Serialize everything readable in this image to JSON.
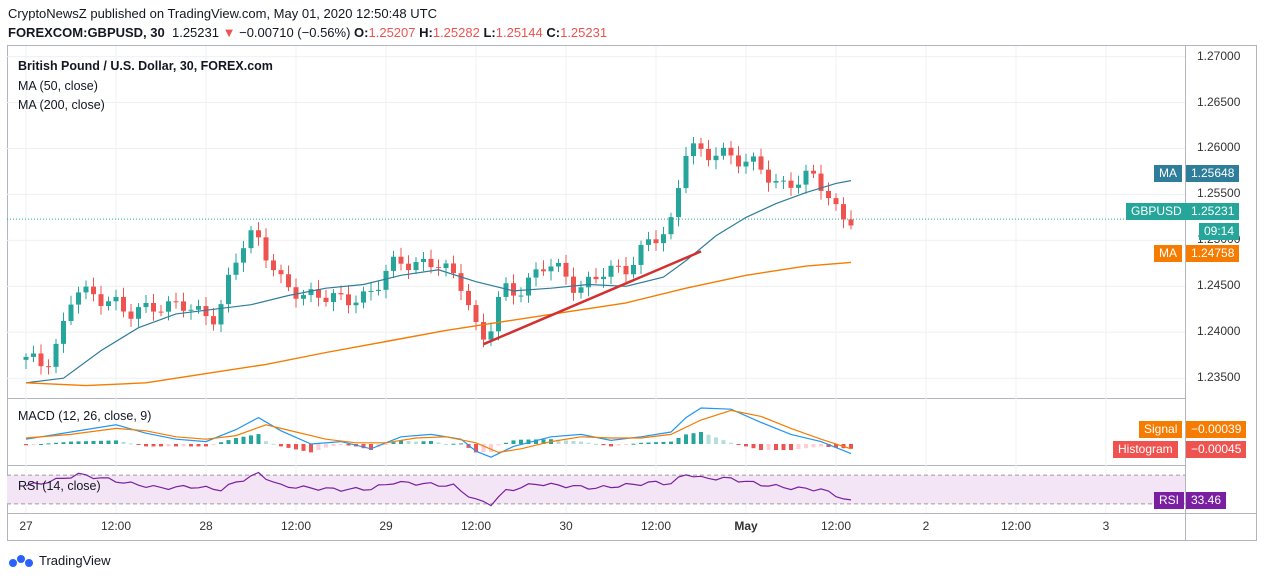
{
  "header": {
    "publisher_line": "CryptoNewsZ published on TradingView.com, May 01, 2020 12:50:48 UTC",
    "symbol": "FOREXCOM:GBPUSD, 30",
    "last": "1.25231",
    "change": "−0.00710 (−0.56%)",
    "o_label": "O:",
    "o": "1.25207",
    "h_label": "H:",
    "h": "1.25282",
    "l_label": "L:",
    "l": "1.25144",
    "c_label": "C:",
    "c": "1.25231"
  },
  "legend": {
    "title": "British Pound / U.S. Dollar, 30, FOREX.com",
    "ma50": "MA (50, close)",
    "ma200": "MA (200, close)",
    "macd": "MACD (12, 26, close, 9)",
    "rsi": "RSI (14, close)"
  },
  "price_tags": {
    "ma50_label": "MA",
    "ma50_value": "1.25648",
    "gbpusd_label": "GBPUSD",
    "gbpusd_value": "1.25231",
    "countdown": "09:14",
    "ma200_label": "MA",
    "ma200_value": "1.24758",
    "signal_label": "Signal",
    "signal_value": "−0.00039",
    "hist_label": "Histogram",
    "hist_value": "−0.00045",
    "rsi_label": "RSI",
    "rsi_value": "33.46"
  },
  "colors": {
    "up": "#26a69a",
    "down": "#ef5350",
    "ma50": "#2e7d9a",
    "ma200": "#f57c00",
    "trendline": "#d32f2f",
    "rsi": "#7b1fa2",
    "rsi_band": "#f3e5f5"
  },
  "footer": {
    "brand": "TradingView",
    "logo_icon": "tradingview-logo-icon"
  },
  "chart_data": {
    "type": "line",
    "title": "British Pound / U.S. Dollar, 30, FOREX.com",
    "xlabel": "",
    "ylabel": "",
    "ylim": [
      1.2335,
      1.2705
    ],
    "y_ticks": [
      "1.27000",
      "1.26500",
      "1.26000",
      "1.25500",
      "1.25000",
      "1.24500",
      "1.24000",
      "1.23500"
    ],
    "x_ticks": [
      "27",
      "12:00",
      "28",
      "12:00",
      "29",
      "12:00",
      "30",
      "12:00",
      "May",
      "12:00",
      "2",
      "12:00",
      "3"
    ],
    "x_tick_pos": [
      0,
      12,
      24,
      36,
      48,
      60,
      72,
      84,
      96,
      108,
      120,
      132,
      144
    ],
    "last_index": 110,
    "price": [
      [
        0,
        1.237
      ],
      [
        3,
        1.2365
      ],
      [
        5,
        1.2395
      ],
      [
        7,
        1.2445
      ],
      [
        9,
        1.244
      ],
      [
        12,
        1.2438
      ],
      [
        14,
        1.2415
      ],
      [
        16,
        1.2425
      ],
      [
        18,
        1.2432
      ],
      [
        20,
        1.2428
      ],
      [
        22,
        1.2425
      ],
      [
        24,
        1.2422
      ],
      [
        26,
        1.2418
      ],
      [
        28,
        1.2465
      ],
      [
        30,
        1.2505
      ],
      [
        31,
        1.251
      ],
      [
        33,
        1.248
      ],
      [
        35,
        1.2445
      ],
      [
        37,
        1.244
      ],
      [
        39,
        1.2445
      ],
      [
        41,
        1.2438
      ],
      [
        43,
        1.243
      ],
      [
        45,
        1.244
      ],
      [
        47,
        1.2448
      ],
      [
        49,
        1.247
      ],
      [
        51,
        1.2475
      ],
      [
        53,
        1.2478
      ],
      [
        55,
        1.2475
      ],
      [
        57,
        1.2462
      ],
      [
        59,
        1.245
      ],
      [
        60,
        1.242
      ],
      [
        61,
        1.2395
      ],
      [
        62,
        1.239
      ],
      [
        63,
        1.242
      ],
      [
        64,
        1.2445
      ],
      [
        66,
        1.2445
      ],
      [
        68,
        1.2462
      ],
      [
        70,
        1.2472
      ],
      [
        72,
        1.2465
      ],
      [
        74,
        1.245
      ],
      [
        76,
        1.2455
      ],
      [
        78,
        1.2465
      ],
      [
        80,
        1.247
      ],
      [
        81,
        1.2475
      ],
      [
        82,
        1.2485
      ],
      [
        84,
        1.25
      ],
      [
        85,
        1.25
      ],
      [
        86,
        1.251
      ],
      [
        87,
        1.253
      ],
      [
        88,
        1.2595
      ],
      [
        89,
        1.2608
      ],
      [
        91,
        1.2585
      ],
      [
        93,
        1.2598
      ],
      [
        95,
        1.2592
      ],
      [
        97,
        1.2585
      ],
      [
        99,
        1.257
      ],
      [
        101,
        1.2562
      ],
      [
        103,
        1.2565
      ],
      [
        105,
        1.2568
      ],
      [
        106,
        1.2562
      ],
      [
        107,
        1.2555
      ],
      [
        108,
        1.2545
      ],
      [
        109,
        1.2528
      ],
      [
        110,
        1.2523
      ]
    ],
    "series": [
      {
        "values": [
          [
            0,
            1.2345
          ],
          [
            5,
            1.235
          ],
          [
            10,
            1.238
          ],
          [
            15,
            1.2405
          ],
          [
            20,
            1.242
          ],
          [
            25,
            1.2425
          ],
          [
            30,
            1.243
          ],
          [
            35,
            1.244
          ],
          [
            40,
            1.2448
          ],
          [
            45,
            1.2452
          ],
          [
            50,
            1.2462
          ],
          [
            55,
            1.2468
          ],
          [
            60,
            1.2455
          ],
          [
            65,
            1.2445
          ],
          [
            70,
            1.2448
          ],
          [
            75,
            1.2452
          ],
          [
            80,
            1.245
          ],
          [
            85,
            1.246
          ],
          [
            88,
            1.2478
          ],
          [
            92,
            1.2505
          ],
          [
            96,
            1.2525
          ],
          [
            100,
            1.254
          ],
          [
            104,
            1.2552
          ],
          [
            108,
            1.2562
          ],
          [
            110,
            1.2565
          ]
        ]
      },
      {
        "values": [
          [
            0,
            1.2345
          ],
          [
            8,
            1.2342
          ],
          [
            16,
            1.2345
          ],
          [
            24,
            1.2355
          ],
          [
            32,
            1.2365
          ],
          [
            40,
            1.2378
          ],
          [
            48,
            1.239
          ],
          [
            56,
            1.2402
          ],
          [
            64,
            1.2412
          ],
          [
            72,
            1.2422
          ],
          [
            80,
            1.2432
          ],
          [
            88,
            1.2448
          ],
          [
            96,
            1.2462
          ],
          [
            104,
            1.2472
          ],
          [
            110,
            1.2476
          ]
        ]
      }
    ],
    "trendline": [
      [
        61,
        1.2387
      ],
      [
        90,
        1.2488
      ]
    ],
    "macd": {
      "ylim": [
        -0.0015,
        0.0035
      ],
      "macd_line": [
        [
          0,
          0.0004
        ],
        [
          6,
          0.001
        ],
        [
          12,
          0.0016
        ],
        [
          16,
          0.0009
        ],
        [
          20,
          0.0004
        ],
        [
          24,
          0.0002
        ],
        [
          28,
          0.0012
        ],
        [
          31,
          0.0022
        ],
        [
          34,
          0.0011
        ],
        [
          38,
          0.0
        ],
        [
          42,
          0.0002
        ],
        [
          46,
          -0.0004
        ],
        [
          50,
          0.0006
        ],
        [
          54,
          0.0008
        ],
        [
          58,
          0.0004
        ],
        [
          60,
          -0.0006
        ],
        [
          62,
          -0.0011
        ],
        [
          65,
          -0.0002
        ],
        [
          70,
          0.0006
        ],
        [
          74,
          0.0008
        ],
        [
          78,
          0.0003
        ],
        [
          82,
          0.0006
        ],
        [
          86,
          0.001
        ],
        [
          88,
          0.0022
        ],
        [
          90,
          0.003
        ],
        [
          94,
          0.0029
        ],
        [
          98,
          0.0018
        ],
        [
          102,
          0.0008
        ],
        [
          106,
          0.0002
        ],
        [
          110,
          -0.0008
        ]
      ],
      "signal_line": [
        [
          0,
          0.0005
        ],
        [
          6,
          0.0008
        ],
        [
          12,
          0.0013
        ],
        [
          16,
          0.0011
        ],
        [
          20,
          0.0006
        ],
        [
          24,
          0.0004
        ],
        [
          28,
          0.0007
        ],
        [
          32,
          0.0016
        ],
        [
          36,
          0.001
        ],
        [
          40,
          0.0004
        ],
        [
          44,
          0.0001
        ],
        [
          48,
          0.0001
        ],
        [
          52,
          0.0005
        ],
        [
          56,
          0.0006
        ],
        [
          60,
          0.0001
        ],
        [
          63,
          -0.0007
        ],
        [
          66,
          -0.0004
        ],
        [
          70,
          0.0002
        ],
        [
          74,
          0.0006
        ],
        [
          78,
          0.0005
        ],
        [
          82,
          0.0005
        ],
        [
          86,
          0.0008
        ],
        [
          90,
          0.002
        ],
        [
          94,
          0.0028
        ],
        [
          98,
          0.0023
        ],
        [
          102,
          0.0013
        ],
        [
          106,
          0.0004
        ],
        [
          110,
          -0.0004
        ]
      ]
    },
    "rsi": {
      "ylim": [
        20,
        80
      ],
      "bands": [
        30,
        70
      ],
      "values": [
        [
          0,
          55
        ],
        [
          4,
          63
        ],
        [
          7,
          71
        ],
        [
          10,
          66
        ],
        [
          14,
          58
        ],
        [
          18,
          52
        ],
        [
          22,
          54
        ],
        [
          26,
          50
        ],
        [
          28,
          60
        ],
        [
          31,
          72
        ],
        [
          34,
          55
        ],
        [
          38,
          52
        ],
        [
          42,
          50
        ],
        [
          46,
          51
        ],
        [
          49,
          60
        ],
        [
          53,
          58
        ],
        [
          57,
          55
        ],
        [
          60,
          35
        ],
        [
          62,
          30
        ],
        [
          64,
          48
        ],
        [
          68,
          58
        ],
        [
          72,
          55
        ],
        [
          76,
          52
        ],
        [
          80,
          56
        ],
        [
          84,
          60
        ],
        [
          86,
          58
        ],
        [
          88,
          72
        ],
        [
          90,
          66
        ],
        [
          94,
          65
        ],
        [
          98,
          57
        ],
        [
          102,
          52
        ],
        [
          106,
          50
        ],
        [
          108,
          42
        ],
        [
          110,
          33
        ]
      ]
    }
  }
}
